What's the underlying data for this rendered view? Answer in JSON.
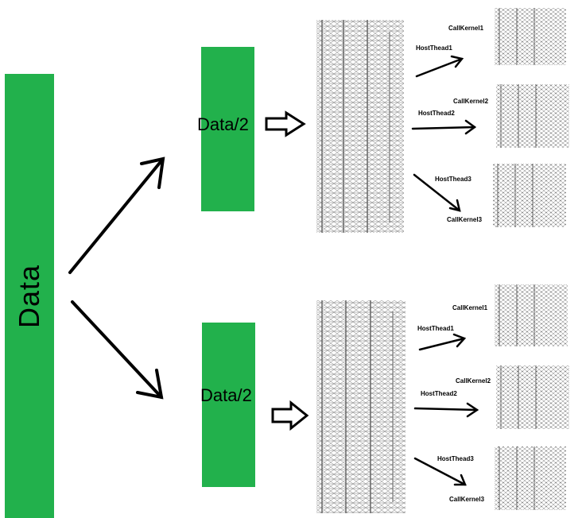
{
  "data_block": {
    "label": "Data",
    "color": "#22b14c"
  },
  "halves": [
    {
      "label": "Data/2"
    },
    {
      "label": "Data/2"
    }
  ],
  "branches": [
    {
      "threads": [
        {
          "thread_label": "HostThead1",
          "kernel_label": "CallKernel1"
        },
        {
          "thread_label": "HostThead2",
          "kernel_label": "CallKernel2"
        },
        {
          "thread_label": "HostThead3",
          "kernel_label": "CallKernel3"
        }
      ]
    },
    {
      "threads": [
        {
          "thread_label": "HostThead1",
          "kernel_label": "CallKernel1"
        },
        {
          "thread_label": "HostThead2",
          "kernel_label": "CallKernel2"
        },
        {
          "thread_label": "HostThead3",
          "kernel_label": "CallKernel3"
        }
      ]
    }
  ]
}
